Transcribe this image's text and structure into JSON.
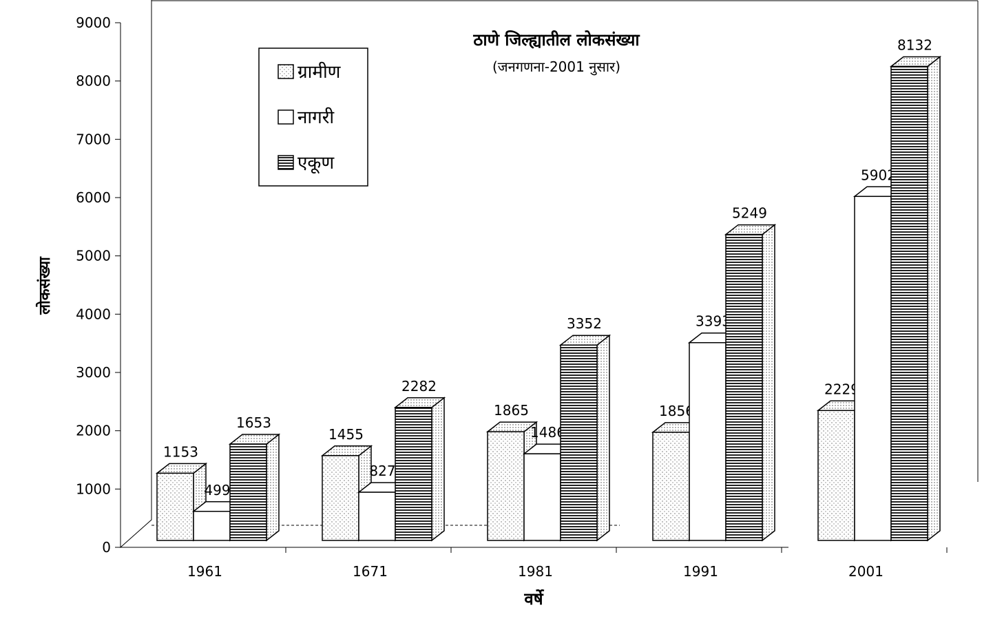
{
  "chart_data": {
    "type": "bar3d",
    "title": "ठाणे जिल्ह्यातील लोकसंख्या",
    "subtitle": "(जनगणना-2001 नुसार)",
    "y_label": "लोकसंख्या",
    "x_label": "वर्षे",
    "categories": [
      "1961",
      "1671",
      "1981",
      "1991",
      "2001"
    ],
    "series": [
      {
        "name": "ग्रामीण",
        "color": "#ffffff",
        "pattern": "dots",
        "values": [
          1153,
          1455,
          1865,
          1856,
          2229
        ]
      },
      {
        "name": "नागरी",
        "color": "#ffffff",
        "pattern": "none",
        "values": [
          499,
          827,
          1486,
          3393,
          5902
        ]
      },
      {
        "name": "एकूण",
        "color": "#ffffff",
        "pattern": "hlines",
        "values": [
          1653,
          2282,
          3352,
          5249,
          8132
        ]
      }
    ],
    "ylim": [
      0,
      9000
    ],
    "yticks": [
      0,
      1000,
      2000,
      3000,
      4000,
      5000,
      6000,
      7000,
      8000,
      9000
    ]
  }
}
